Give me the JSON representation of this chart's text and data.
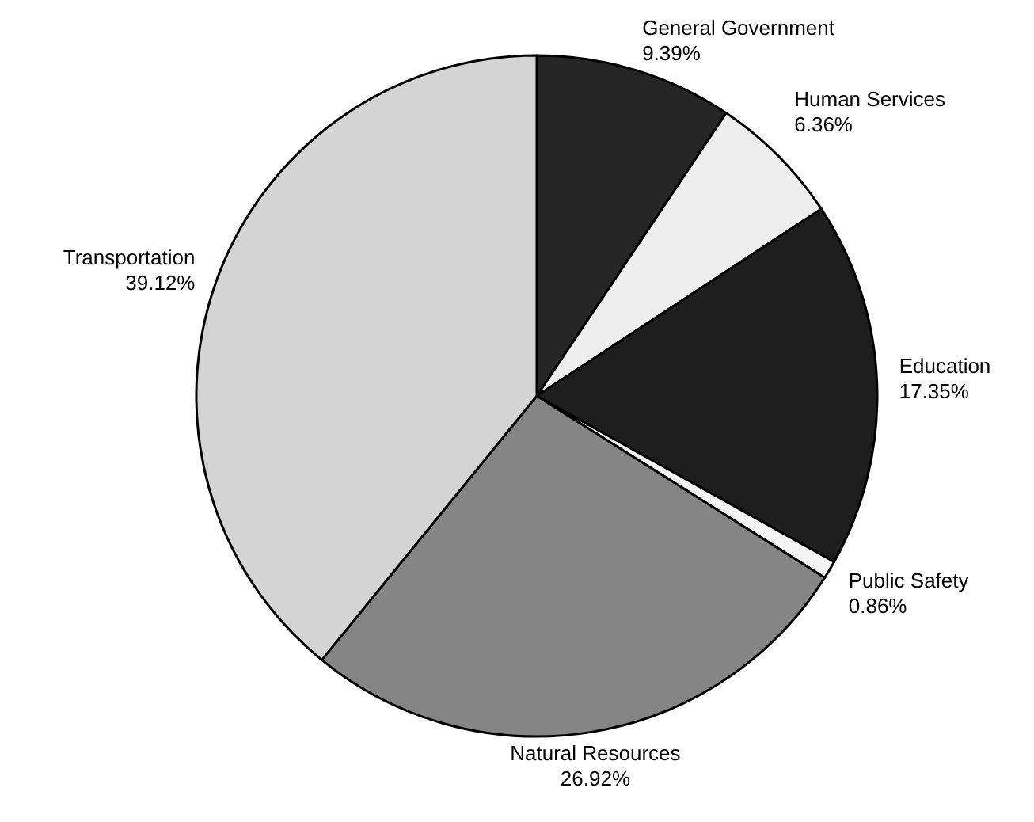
{
  "chart_data": {
    "type": "pie",
    "categories": [
      "General Government",
      "Human Services",
      "Education",
      "Public Safety",
      "Natural Resources",
      "Transportation"
    ],
    "values": [
      9.39,
      6.36,
      17.35,
      0.86,
      26.92,
      39.12
    ],
    "value_labels": [
      "9.39%",
      "6.36%",
      "17.35%",
      "0.86%",
      "26.92%",
      "39.12%"
    ],
    "colors": [
      "#262626",
      "#eeeeee",
      "#1e1e1e",
      "#f4f4f4",
      "#858585",
      "#d4d4d4"
    ]
  }
}
